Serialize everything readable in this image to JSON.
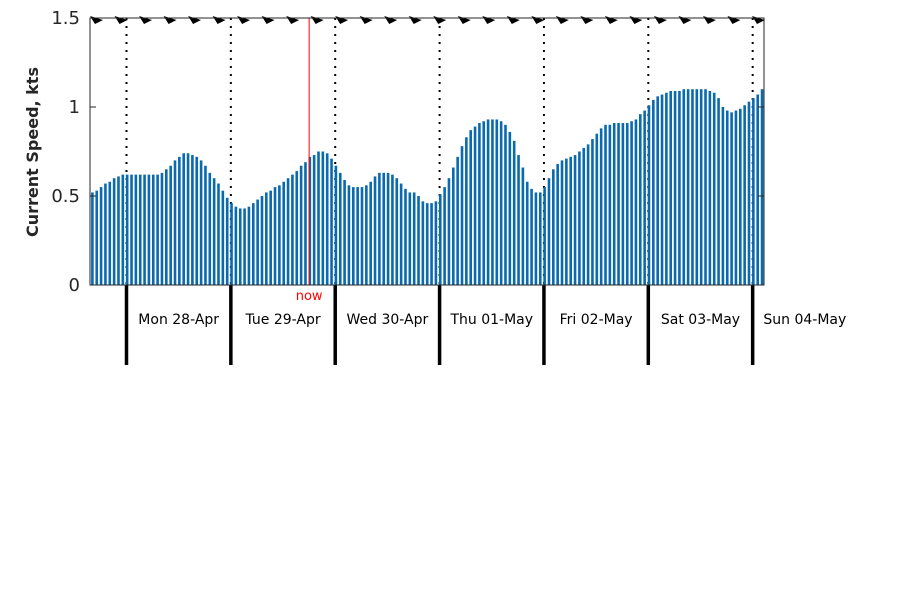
{
  "chart_data": {
    "type": "bar",
    "ylabel": "Current Speed, kts",
    "ylim": [
      0,
      1.5
    ],
    "yticks": [
      "0",
      "0.5",
      "1",
      "1.5"
    ],
    "now_label": "now",
    "now_position_days": 1.75,
    "day_labels": [
      "Mon 28-Apr",
      "Tue 29-Apr",
      "Wed 30-Apr",
      "Thu 01-May",
      "Fri 02-May",
      "Sat 03-May",
      "Sun 04-May"
    ],
    "hours_per_bar": 1,
    "bar_color": "#0b6aad",
    "now_color": "#ff0000",
    "direction_arrows_count": 28,
    "values": [
      0.52,
      0.53,
      0.55,
      0.57,
      0.58,
      0.6,
      0.61,
      0.62,
      0.62,
      0.62,
      0.62,
      0.62,
      0.62,
      0.62,
      0.62,
      0.62,
      0.63,
      0.65,
      0.67,
      0.7,
      0.72,
      0.74,
      0.74,
      0.73,
      0.72,
      0.7,
      0.67,
      0.63,
      0.6,
      0.57,
      0.53,
      0.49,
      0.46,
      0.44,
      0.43,
      0.43,
      0.44,
      0.46,
      0.48,
      0.5,
      0.52,
      0.53,
      0.55,
      0.56,
      0.58,
      0.6,
      0.62,
      0.64,
      0.67,
      0.69,
      0.72,
      0.73,
      0.75,
      0.75,
      0.74,
      0.71,
      0.67,
      0.63,
      0.59,
      0.56,
      0.55,
      0.55,
      0.55,
      0.56,
      0.58,
      0.61,
      0.63,
      0.63,
      0.63,
      0.62,
      0.6,
      0.57,
      0.54,
      0.52,
      0.52,
      0.5,
      0.47,
      0.46,
      0.46,
      0.47,
      0.51,
      0.55,
      0.6,
      0.66,
      0.72,
      0.78,
      0.83,
      0.87,
      0.89,
      0.91,
      0.92,
      0.93,
      0.93,
      0.93,
      0.92,
      0.9,
      0.86,
      0.81,
      0.73,
      0.66,
      0.58,
      0.54,
      0.52,
      0.52,
      0.55,
      0.6,
      0.65,
      0.68,
      0.7,
      0.71,
      0.72,
      0.73,
      0.75,
      0.77,
      0.79,
      0.82,
      0.85,
      0.88,
      0.9,
      0.9,
      0.91,
      0.91,
      0.91,
      0.91,
      0.92,
      0.93,
      0.96,
      0.98,
      1.01,
      1.04,
      1.06,
      1.07,
      1.08,
      1.09,
      1.09,
      1.09,
      1.1,
      1.1,
      1.1,
      1.1,
      1.1,
      1.1,
      1.09,
      1.08,
      1.05,
      1.0,
      0.98,
      0.97,
      0.98,
      0.99,
      1.01,
      1.03,
      1.05,
      1.07,
      1.1
    ]
  }
}
